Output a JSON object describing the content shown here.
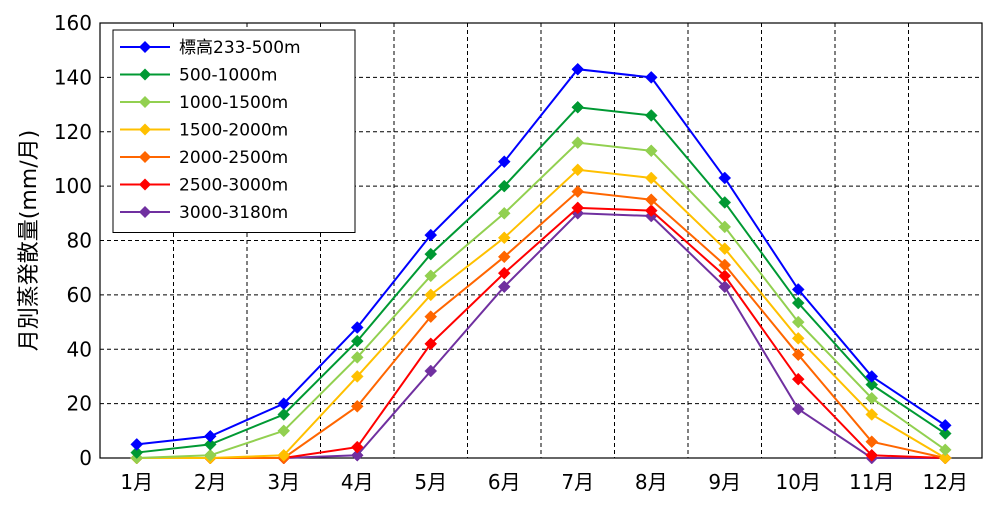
{
  "chart_data": {
    "type": "line",
    "title": "",
    "xlabel": "",
    "ylabel": "月別蒸発散量(mm/月)",
    "ylim": [
      0,
      160
    ],
    "yticks": [
      0,
      20,
      40,
      60,
      80,
      100,
      120,
      140,
      160
    ],
    "ytick_labels": [
      "0",
      "20",
      "40",
      "60",
      "80",
      "100",
      "120",
      "140",
      "160"
    ],
    "categories": [
      "1月",
      "2月",
      "3月",
      "4月",
      "5月",
      "6月",
      "7月",
      "8月",
      "9月",
      "10月",
      "11月",
      "12月"
    ],
    "grid": true,
    "legend_position": "top-left",
    "series": [
      {
        "name": "標高233-500m",
        "color": "#0000ff",
        "values": [
          5,
          8,
          20,
          48,
          82,
          109,
          143,
          140,
          103,
          62,
          30,
          12
        ]
      },
      {
        "name": "500-1000m",
        "color": "#009933",
        "values": [
          2,
          5,
          16,
          43,
          75,
          100,
          129,
          126,
          94,
          57,
          27,
          9
        ]
      },
      {
        "name": "1000-1500m",
        "color": "#92d050",
        "values": [
          0,
          1,
          10,
          37,
          67,
          90,
          116,
          113,
          85,
          50,
          22,
          3
        ]
      },
      {
        "name": "1500-2000m",
        "color": "#ffc000",
        "values": [
          0,
          0,
          1,
          30,
          60,
          81,
          106,
          103,
          77,
          44,
          16,
          0
        ]
      },
      {
        "name": "2000-2500m",
        "color": "#ff6600",
        "values": [
          0,
          0,
          0,
          19,
          52,
          74,
          98,
          95,
          71,
          38,
          6,
          0
        ]
      },
      {
        "name": "2500-3000m",
        "color": "#ff0000",
        "values": [
          0,
          0,
          0,
          4,
          42,
          68,
          92,
          91,
          67,
          29,
          1,
          0
        ]
      },
      {
        "name": "3000-3180m",
        "color": "#7030a0",
        "values": [
          0,
          0,
          0,
          1,
          32,
          63,
          90,
          89,
          63,
          18,
          0,
          0
        ]
      }
    ]
  }
}
